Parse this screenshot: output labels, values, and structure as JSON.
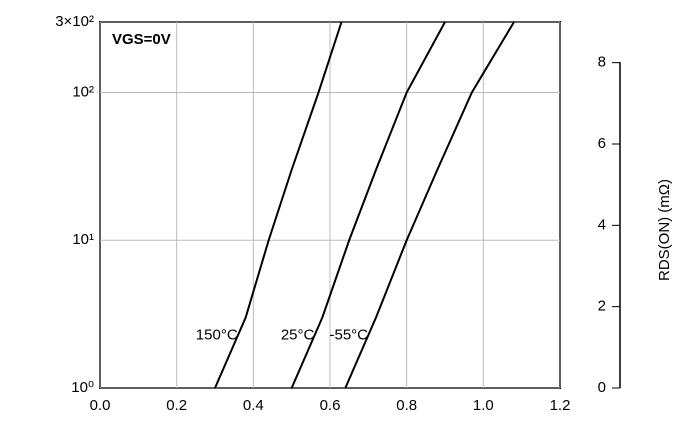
{
  "chart_data": {
    "type": "line",
    "annotation": "VGS=0V",
    "y2label": "RDS(ON) (mΩ)",
    "log_y": true,
    "grid": true,
    "xlim": [
      0,
      1.2
    ],
    "xticks": [
      {
        "value": 0,
        "label": "0.0"
      },
      0.2,
      0.4,
      0.6,
      0.8,
      {
        "value": 1,
        "label": "1.0"
      },
      1.2
    ],
    "ylim": [
      1,
      300
    ],
    "yticks": [
      {
        "value": 1,
        "label": "10⁰"
      },
      {
        "value": 10,
        "label": "10¹"
      },
      {
        "value": 100,
        "label": "10²"
      },
      {
        "value": 300,
        "label": "3×10²"
      }
    ],
    "y2lim": [
      0,
      9
    ],
    "y2ticks": [
      0,
      2,
      4,
      6,
      8
    ],
    "series": [
      {
        "name": "150°C",
        "color": "#000000",
        "x": [
          0.3,
          0.38,
          0.44,
          0.5,
          0.57,
          0.63
        ],
        "values": [
          1,
          3,
          10,
          30,
          100,
          300
        ]
      },
      {
        "name": "25°C",
        "color": "#000000",
        "x": [
          0.5,
          0.58,
          0.65,
          0.72,
          0.8,
          0.9
        ],
        "values": [
          1,
          3,
          10,
          30,
          100,
          300
        ]
      },
      {
        "name": "-55°C",
        "color": "#000000",
        "x": [
          0.64,
          0.72,
          0.8,
          0.88,
          0.97,
          1.08
        ],
        "values": [
          1,
          3,
          10,
          30,
          100,
          300
        ]
      }
    ]
  }
}
